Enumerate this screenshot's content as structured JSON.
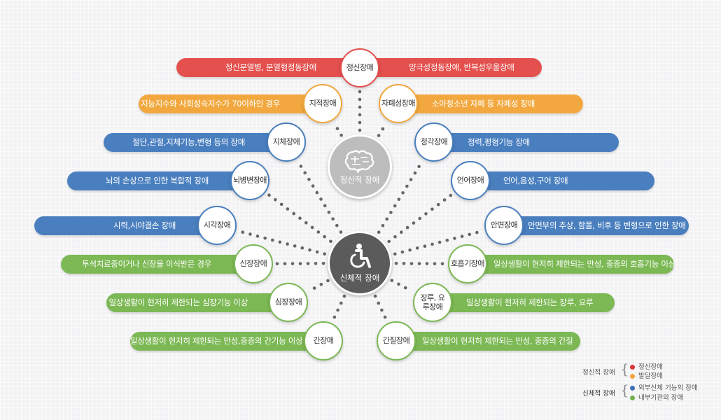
{
  "colors": {
    "red": "#e3504e",
    "orange": "#f2a83f",
    "blue": "#4a7fbf",
    "green": "#7cb854",
    "mental_hub": "#bdbdbd",
    "physical_hub": "#5b5b5b",
    "dots": "#666666"
  },
  "hubs": {
    "mental": {
      "label": "정신적 장애",
      "icon": "brain-icon"
    },
    "physical": {
      "label": "신체적 장애",
      "icon": "wheelchair-icon"
    }
  },
  "categories": {
    "mental_illness": {
      "name": "정신장애",
      "desc_left": "정신분열병, 분열형정동장애",
      "desc_right": "양극성정동장애, 반복성우울장애"
    },
    "intellectual": {
      "name": "지적장애",
      "desc": "지능지수와 사회성숙지수가 70이하인 경우"
    },
    "autism": {
      "name": "자폐성장애",
      "desc": "소아청소년 자폐 등 자폐성 장애"
    },
    "limb": {
      "name": "지체장애",
      "desc": "절단,관절,지체기능,변형 등의 장애"
    },
    "hearing": {
      "name": "청각장애",
      "desc": "청력,평형기능 장애"
    },
    "brain_lesion": {
      "name": "뇌병변장애",
      "desc": "뇌의 손상으로 인한 복합적 장애"
    },
    "speech": {
      "name": "언어장애",
      "desc": "언어,음성,구어 장애"
    },
    "visual": {
      "name": "시각장애",
      "desc": "시력,시야결손 장애"
    },
    "facial": {
      "name": "안면장애",
      "desc": "안면부의 추상, 함몰, 비후 등 변형으로 인한 장애"
    },
    "kidney": {
      "name": "신장장애",
      "desc": "투석치료중이거나 신장을 이식받은 경우"
    },
    "respiratory": {
      "name": "호흡기장애",
      "desc": "일상생활이 현저히 제한되는 만성, 중증의 호흡기능 이상"
    },
    "heart": {
      "name": "심장장애",
      "desc": "일상생활이 현저히 제한되는 심장기능 이상"
    },
    "ostomy": {
      "name": "장루, 요루장애",
      "desc": "일상생활이 현저히 제한되는 장루, 요루"
    },
    "liver": {
      "name": "간장애",
      "desc": "일상생활이 현저히 제한되는 만성,중증의 간기능 이상"
    },
    "epilepsy": {
      "name": "간질장애",
      "desc": "일상생활이 현저히 제한되는 만성, 중증의 간질"
    }
  },
  "legend": {
    "mental_group": "정신적 장애",
    "physical_group": "신체적 장애",
    "items": [
      {
        "label": "정신장애",
        "color": "#d9363a"
      },
      {
        "label": "발달장애",
        "color": "#f2a33a"
      },
      {
        "label": "외부신체 기능의 장애",
        "color": "#3d6fb8"
      },
      {
        "label": "내부기관의 장애",
        "color": "#6fb04a"
      }
    ]
  }
}
